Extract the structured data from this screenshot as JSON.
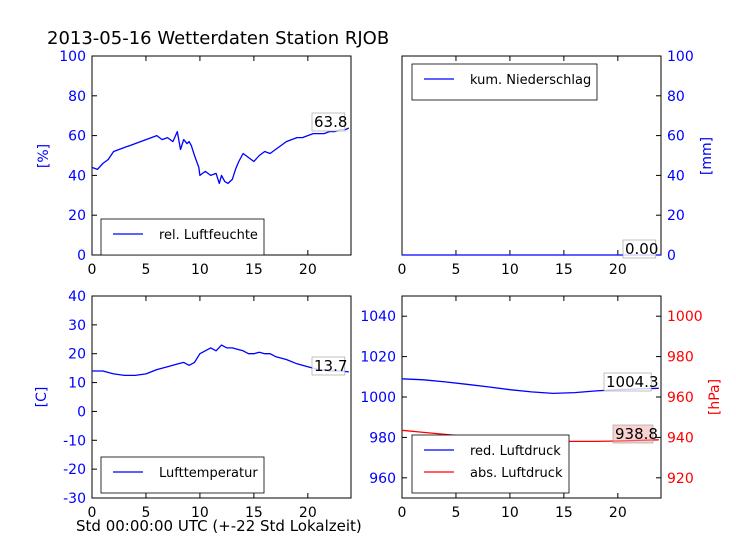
{
  "figure": {
    "title": "2013-05-16 Wetterdaten Station RJOB",
    "xlabel": "Std 00:00:00 UTC (+-22 Std Lokalzeit)"
  },
  "colors": {
    "blue": "#0000ff",
    "red": "#ff0000",
    "black": "#000000"
  },
  "chart_data": [
    {
      "id": "humidity",
      "type": "line",
      "ylabel": "[%]",
      "xlim": [
        0,
        24
      ],
      "ylim": [
        0,
        100
      ],
      "xticks": [
        0,
        5,
        10,
        15,
        20
      ],
      "yticks": [
        0,
        20,
        40,
        60,
        80,
        100
      ],
      "grid": false,
      "legend_position": "lower-left",
      "last_value_label": "63.8",
      "series": [
        {
          "name": "rel. Luftfeuchte",
          "color": "#0000ff",
          "x": [
            0,
            0.5,
            1,
            1.5,
            2,
            2.5,
            3,
            3.5,
            4,
            4.5,
            5,
            5.5,
            6,
            6.5,
            7,
            7.5,
            7.9,
            8.2,
            8.5,
            8.8,
            9,
            9.2,
            9.5,
            9.9,
            10,
            10.5,
            11,
            11.5,
            11.8,
            12,
            12.3,
            12.6,
            13,
            13.3,
            13.6,
            14,
            14.5,
            15,
            15.5,
            16,
            16.5,
            17,
            17.5,
            18,
            18.5,
            19,
            19.5,
            20,
            20.5,
            21,
            21.5,
            22,
            22.5,
            23,
            23.5,
            23.8
          ],
          "y": [
            44,
            43,
            46,
            48,
            52,
            53,
            54,
            55,
            56,
            57,
            58,
            59,
            60,
            58,
            59,
            57,
            62,
            53,
            58,
            56,
            57,
            55,
            50,
            44,
            40,
            42,
            40,
            41,
            36,
            40,
            37,
            36,
            38,
            43,
            47,
            51,
            49,
            47,
            50,
            52,
            51,
            53,
            55,
            57,
            58,
            59,
            59,
            60,
            61,
            61,
            61,
            62,
            62,
            63,
            63,
            63.8
          ]
        }
      ]
    },
    {
      "id": "precipitation",
      "type": "line",
      "ylabel": "[mm]",
      "y_axis_side": "right",
      "xlim": [
        0,
        24
      ],
      "ylim": [
        0,
        100
      ],
      "xticks": [
        0,
        5,
        10,
        15,
        20
      ],
      "yticks": [
        0,
        20,
        40,
        60,
        80,
        100
      ],
      "grid": false,
      "legend_position": "upper-left",
      "last_value_label": "0.00",
      "series": [
        {
          "name": "kum. Niederschlag",
          "color": "#0000ff",
          "x": [
            0,
            24
          ],
          "y": [
            0,
            0
          ]
        }
      ]
    },
    {
      "id": "temperature",
      "type": "line",
      "ylabel": "[C]",
      "xlim": [
        0,
        24
      ],
      "ylim": [
        -30,
        40
      ],
      "xticks": [
        0,
        5,
        10,
        15,
        20
      ],
      "yticks": [
        -30,
        -20,
        -10,
        0,
        10,
        20,
        30,
        40
      ],
      "grid": false,
      "legend_position": "lower-center",
      "last_value_label": "13.7",
      "series": [
        {
          "name": "Lufttemperatur",
          "color": "#0000ff",
          "x": [
            0,
            1,
            2,
            3,
            4,
            5,
            6,
            7,
            8,
            8.5,
            9,
            9.5,
            10,
            10.5,
            11,
            11.5,
            12,
            12.5,
            13,
            13.5,
            14,
            14.5,
            15,
            15.5,
            16,
            16.5,
            17,
            18,
            19,
            20,
            21,
            22,
            23,
            23.8
          ],
          "y": [
            14,
            14,
            13,
            12.5,
            12.5,
            13,
            14.5,
            15.5,
            16.5,
            17,
            16,
            17,
            20,
            21,
            22,
            21,
            23,
            22,
            22,
            21.5,
            21,
            20,
            20,
            20.5,
            20,
            20,
            19,
            18,
            16.5,
            15.5,
            14.5,
            14,
            14,
            13.7
          ]
        }
      ]
    },
    {
      "id": "pressure",
      "type": "line",
      "ylabel_right": "[hPa]",
      "xlim": [
        0,
        24
      ],
      "ylim_left": [
        950,
        1050
      ],
      "ylim_right": [
        910,
        1010
      ],
      "xticks": [
        0,
        5,
        10,
        15,
        20
      ],
      "yticks_left": [
        960,
        980,
        1000,
        1020,
        1040
      ],
      "yticks_right": [
        920,
        940,
        960,
        980,
        1000
      ],
      "grid": false,
      "legend_position": "lower-left",
      "last_value_labels": {
        "red": "1004.3",
        "abs": "938.8"
      },
      "series": [
        {
          "name": "red. Luftdruck",
          "axis": "left",
          "color": "#0000ff",
          "x": [
            0,
            2,
            4,
            6,
            8,
            10,
            12,
            14,
            16,
            18,
            20,
            22,
            23.8
          ],
          "y": [
            1009,
            1008.5,
            1007.5,
            1006.3,
            1005,
            1003.6,
            1002.5,
            1001.8,
            1002.2,
            1003,
            1003.6,
            1004,
            1004.3
          ]
        },
        {
          "name": "abs. Luftdruck",
          "axis": "right",
          "color": "#ff0000",
          "x": [
            0,
            2,
            4,
            6,
            8,
            10,
            12,
            14,
            16,
            18,
            20,
            22,
            23.8
          ],
          "y": [
            943.5,
            942.5,
            941.5,
            940.5,
            939.5,
            939,
            938.5,
            938,
            938,
            938,
            938.2,
            938.5,
            938.8
          ]
        }
      ]
    }
  ]
}
